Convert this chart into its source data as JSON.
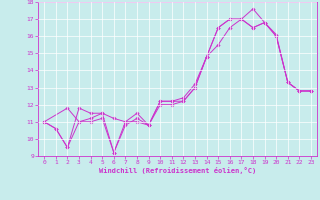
{
  "xlabel": "Windchill (Refroidissement éolien,°C)",
  "xlim": [
    -0.5,
    23.5
  ],
  "ylim": [
    9,
    18
  ],
  "xticks": [
    0,
    1,
    2,
    3,
    4,
    5,
    6,
    7,
    8,
    9,
    10,
    11,
    12,
    13,
    14,
    15,
    16,
    17,
    18,
    19,
    20,
    21,
    22,
    23
  ],
  "yticks": [
    9,
    10,
    11,
    12,
    13,
    14,
    15,
    16,
    17,
    18
  ],
  "bg_color": "#c8ecec",
  "line_color": "#cc33cc",
  "grid_color": "#ffffff",
  "series": [
    {
      "x": [
        0,
        1,
        2,
        3,
        4,
        5,
        6,
        7,
        8,
        9,
        10,
        11,
        12,
        13,
        14,
        15,
        16,
        17,
        18,
        19,
        20,
        21,
        22,
        23
      ],
      "y": [
        11.0,
        10.6,
        9.5,
        11.8,
        11.5,
        11.5,
        9.2,
        11.0,
        11.0,
        10.8,
        12.0,
        12.0,
        12.2,
        13.0,
        14.8,
        16.5,
        17.0,
        17.0,
        16.5,
        16.8,
        16.0,
        13.3,
        12.8,
        12.8
      ]
    },
    {
      "x": [
        0,
        1,
        2,
        3,
        4,
        5,
        6,
        7,
        8,
        9,
        10,
        11,
        12,
        13,
        14,
        15,
        16,
        17,
        18,
        19,
        20,
        21,
        22,
        23
      ],
      "y": [
        11.0,
        10.6,
        9.5,
        11.0,
        11.0,
        11.2,
        9.2,
        10.8,
        11.2,
        10.8,
        12.2,
        12.2,
        12.2,
        13.0,
        14.8,
        16.5,
        17.0,
        17.0,
        16.5,
        16.8,
        16.0,
        13.3,
        12.8,
        12.8
      ]
    },
    {
      "x": [
        0,
        2,
        3,
        4,
        5,
        6,
        7,
        8,
        9,
        10,
        11,
        12,
        13,
        14,
        15,
        16,
        17,
        18,
        19,
        20,
        21,
        22,
        23
      ],
      "y": [
        11.0,
        11.8,
        11.0,
        11.2,
        11.5,
        11.2,
        11.0,
        11.5,
        10.8,
        12.2,
        12.2,
        12.4,
        13.2,
        14.8,
        15.5,
        16.5,
        17.0,
        17.6,
        16.8,
        16.1,
        13.3,
        12.8,
        12.8
      ]
    }
  ]
}
